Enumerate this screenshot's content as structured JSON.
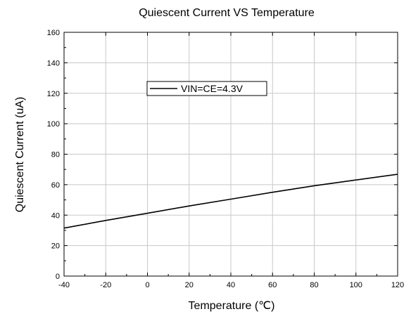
{
  "chart_data": {
    "type": "line",
    "title": "Quiescent Current VS Temperature",
    "xlabel": "Temperature (℃)",
    "ylabel": "Quiescent Current (uA)",
    "xlim": [
      -40,
      120
    ],
    "ylim": [
      0,
      160
    ],
    "xticks": [
      -40,
      -20,
      0,
      20,
      40,
      60,
      80,
      100,
      120
    ],
    "yticks": [
      0,
      20,
      40,
      60,
      80,
      100,
      120,
      140,
      160
    ],
    "grid": true,
    "legend_position": "upper-left",
    "series": [
      {
        "name": "VIN=CE=4.3V",
        "color": "#000000",
        "x": [
          -40,
          -20,
          0,
          20,
          40,
          60,
          80,
          100,
          120
        ],
        "y": [
          31.5,
          36.5,
          41.2,
          46.0,
          50.5,
          55.0,
          59.3,
          63.1,
          66.8
        ]
      }
    ]
  }
}
